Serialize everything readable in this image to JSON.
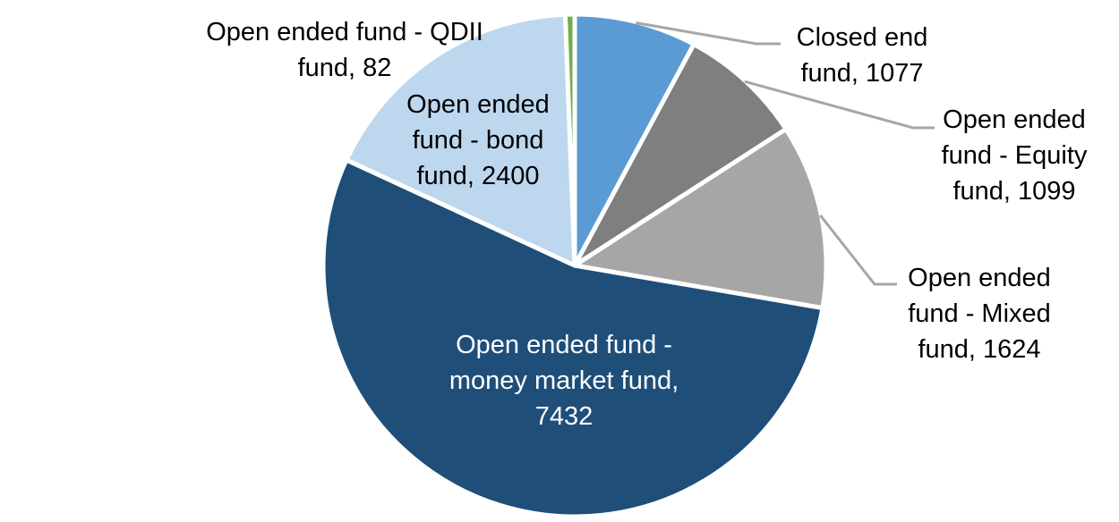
{
  "chart_data": {
    "type": "pie",
    "title": "",
    "legend": "none",
    "background_color": "#FFFFFF",
    "separator_color": "#FFFFFF",
    "leader_line_color": "#A6A6A6",
    "start_angle_deg": 0,
    "direction": "clockwise",
    "slices": [
      {
        "id": "closed-end-fund",
        "name": "Closed end fund",
        "value": 1077,
        "color": "#5B9BD5",
        "label_color": "#000000",
        "label_placement": "outside",
        "has_leader_line": true,
        "label_lines": [
          "Closed end",
          "fund, 1077"
        ]
      },
      {
        "id": "equity-fund",
        "name": "Open ended fund - Equity fund",
        "value": 1099,
        "color": "#7F7F7F",
        "label_color": "#000000",
        "label_placement": "outside",
        "has_leader_line": true,
        "label_lines": [
          "Open ended",
          "fund - Equity",
          "fund, 1099"
        ]
      },
      {
        "id": "mixed-fund",
        "name": "Open ended fund - Mixed fund",
        "value": 1624,
        "color": "#A6A6A6",
        "label_color": "#000000",
        "label_placement": "outside",
        "has_leader_line": true,
        "label_lines": [
          "Open ended",
          "fund - Mixed",
          "fund, 1624"
        ]
      },
      {
        "id": "money-market-fund",
        "name": "Open ended fund - money market fund",
        "value": 7432,
        "color": "#1F4E79",
        "label_color": "#FFFFFF",
        "label_placement": "inside",
        "has_leader_line": false,
        "label_lines": [
          "Open ended fund -",
          "money market fund,",
          "7432"
        ]
      },
      {
        "id": "bond-fund",
        "name": "Open ended fund - bond fund",
        "value": 2400,
        "color": "#BDD7EE",
        "label_color": "#000000",
        "label_placement": "outside",
        "has_leader_line": false,
        "label_lines": [
          "Open ended",
          "fund - bond",
          "fund, 2400"
        ]
      },
      {
        "id": "qdii-fund",
        "name": "Open ended fund - QDII fund",
        "value": 82,
        "color": "#70AD47",
        "label_color": "#000000",
        "label_placement": "outside",
        "has_leader_line": false,
        "label_lines": [
          "Open ended fund - QDII",
          "fund, 82"
        ]
      }
    ]
  }
}
